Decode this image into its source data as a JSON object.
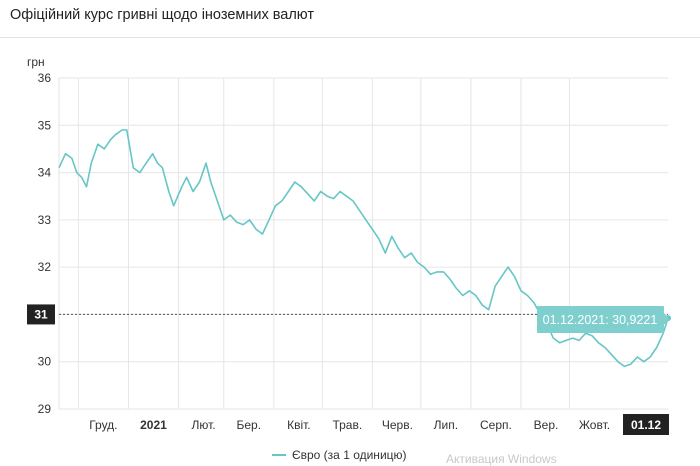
{
  "header": {
    "title": "Офіційний курс гривні щодо іноземних валют"
  },
  "watermark": "Активация Windows",
  "colors": {
    "series": "#66c6c6",
    "grid": "#e6e6e6",
    "axis_text": "#333333",
    "crosshair_label_bg": "#222222",
    "tooltip_bg": "#7fcfcf",
    "tooltip_text": "#ffffff"
  },
  "chart_data": {
    "type": "line",
    "title": "",
    "ylabel": "грн",
    "xlabel": "",
    "ylim": [
      29,
      36
    ],
    "y_ticks": [
      "29",
      "30",
      "31",
      "32",
      "33",
      "34",
      "35",
      "36"
    ],
    "x_ticks": [
      "Груд.",
      "2021",
      "Лют.",
      "Бер.",
      "Квіт.",
      "Трав.",
      "Черв.",
      "Лип.",
      "Серп.",
      "Вер.",
      "Жовт.",
      "01.12"
    ],
    "x_tick_dates": [
      "2020-12-01",
      "2021-01-01",
      "2021-02-01",
      "2021-03-01",
      "2021-04-01",
      "2021-05-01",
      "2021-06-01",
      "2021-07-01",
      "2021-08-01",
      "2021-09-01",
      "2021-10-01",
      "2021-12-01"
    ],
    "x_range": [
      "2020-11-19",
      "2021-12-01"
    ],
    "grid": true,
    "legend_position": "bottom-center",
    "crosshair": {
      "date": "2021-12-01",
      "y_label": "31",
      "x_label": "01.12"
    },
    "tooltip": "01.12.2021: 30,9221",
    "series": [
      {
        "name": "Євро (за 1 одиницю)",
        "x": [
          "2020-11-19",
          "2020-11-23",
          "2020-11-27",
          "2020-11-30",
          "2020-12-03",
          "2020-12-06",
          "2020-12-09",
          "2020-12-13",
          "2020-12-17",
          "2020-12-21",
          "2020-12-24",
          "2020-12-28",
          "2020-12-31",
          "2021-01-04",
          "2021-01-08",
          "2021-01-12",
          "2021-01-16",
          "2021-01-19",
          "2021-01-22",
          "2021-01-26",
          "2021-01-29",
          "2021-02-03",
          "2021-02-06",
          "2021-02-10",
          "2021-02-14",
          "2021-02-18",
          "2021-02-21",
          "2021-02-25",
          "2021-03-01",
          "2021-03-05",
          "2021-03-09",
          "2021-03-13",
          "2021-03-17",
          "2021-03-21",
          "2021-03-25",
          "2021-03-29",
          "2021-04-02",
          "2021-04-06",
          "2021-04-10",
          "2021-04-14",
          "2021-04-18",
          "2021-04-22",
          "2021-04-26",
          "2021-04-30",
          "2021-05-04",
          "2021-05-08",
          "2021-05-12",
          "2021-05-16",
          "2021-05-20",
          "2021-05-24",
          "2021-05-28",
          "2021-06-01",
          "2021-06-05",
          "2021-06-09",
          "2021-06-13",
          "2021-06-17",
          "2021-06-21",
          "2021-06-25",
          "2021-06-29",
          "2021-07-03",
          "2021-07-07",
          "2021-07-11",
          "2021-07-15",
          "2021-07-19",
          "2021-07-23",
          "2021-07-27",
          "2021-07-31",
          "2021-08-04",
          "2021-08-08",
          "2021-08-12",
          "2021-08-16",
          "2021-08-20",
          "2021-08-24",
          "2021-08-28",
          "2021-09-01",
          "2021-09-05",
          "2021-09-09",
          "2021-09-13",
          "2021-09-17",
          "2021-09-21",
          "2021-09-25",
          "2021-09-29",
          "2021-10-03",
          "2021-10-07",
          "2021-10-11",
          "2021-10-15",
          "2021-10-19",
          "2021-10-23",
          "2021-10-27",
          "2021-10-31",
          "2021-11-04",
          "2021-11-08",
          "2021-11-12",
          "2021-11-16",
          "2021-11-20",
          "2021-11-24",
          "2021-11-28",
          "2021-12-01"
        ],
        "values": [
          34.1,
          34.4,
          34.3,
          34.0,
          33.9,
          33.7,
          34.2,
          34.6,
          34.5,
          34.7,
          34.8,
          34.9,
          34.9,
          34.1,
          34.0,
          34.2,
          34.4,
          34.2,
          34.1,
          33.6,
          33.3,
          33.7,
          33.9,
          33.6,
          33.8,
          34.2,
          33.8,
          33.4,
          33.0,
          33.1,
          32.95,
          32.9,
          33.0,
          32.8,
          32.7,
          33.0,
          33.3,
          33.4,
          33.6,
          33.8,
          33.7,
          33.55,
          33.4,
          33.6,
          33.5,
          33.45,
          33.6,
          33.5,
          33.4,
          33.2,
          33.0,
          32.8,
          32.6,
          32.3,
          32.65,
          32.4,
          32.2,
          32.3,
          32.1,
          32.0,
          31.85,
          31.9,
          31.9,
          31.75,
          31.55,
          31.4,
          31.5,
          31.4,
          31.2,
          31.1,
          31.6,
          31.8,
          32.0,
          31.8,
          31.5,
          31.4,
          31.25,
          31.0,
          30.8,
          30.5,
          30.4,
          30.45,
          30.5,
          30.45,
          30.6,
          30.55,
          30.4,
          30.3,
          30.15,
          30.0,
          29.9,
          29.95,
          30.1,
          30.0,
          30.1,
          30.3,
          30.6,
          30.9221
        ]
      }
    ]
  }
}
